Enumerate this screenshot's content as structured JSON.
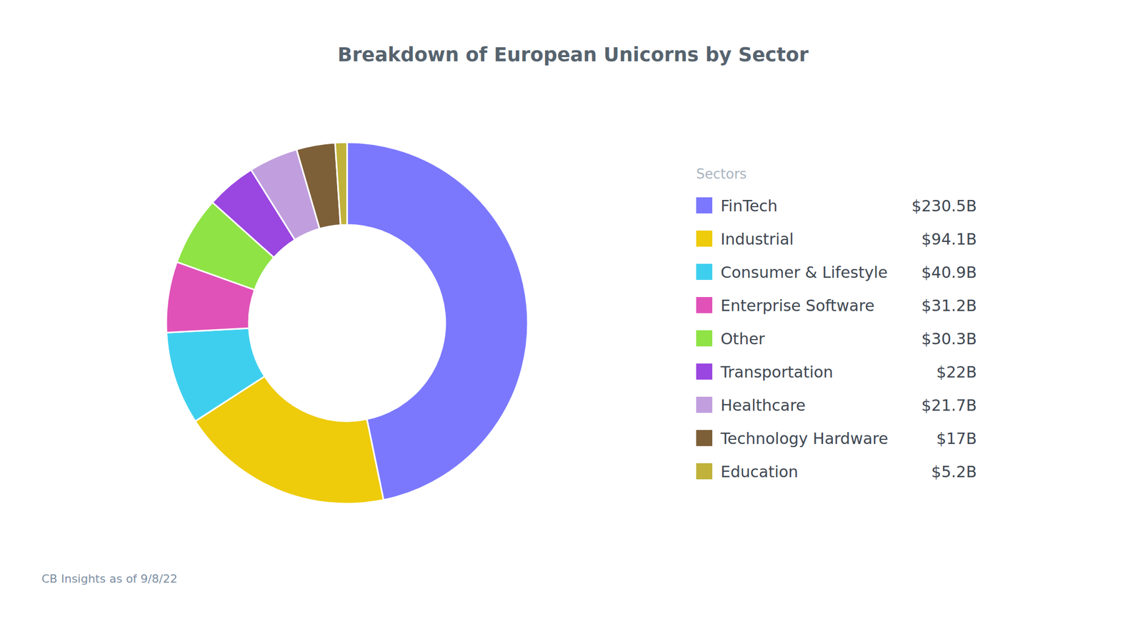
{
  "chart_data": {
    "type": "pie",
    "title": "Breakdown of European Unicorns by Sector",
    "legend_title": "Sectors",
    "source": "CB Insights as of 9/8/22",
    "categories": [
      "FinTech",
      "Industrial",
      "Consumer & Lifestyle",
      "Enterprise Software",
      "Other",
      "Transportation",
      "Healthcare",
      "Technology Hardware",
      "Education"
    ],
    "values": [
      230.5,
      94.1,
      40.9,
      31.2,
      30.3,
      22,
      21.7,
      17,
      5.2
    ],
    "value_labels": [
      "$230.5B",
      "$94.1B",
      "$40.9B",
      "$31.2B",
      "$30.3B",
      "$22B",
      "$21.7B",
      "$17B",
      "$5.2B"
    ],
    "colors": [
      "#7b78fe",
      "#eecb0b",
      "#3ecfef",
      "#e052b8",
      "#8fe345",
      "#9a46e0",
      "#c19fde",
      "#7d5f38",
      "#c0b23a"
    ],
    "legend": "right"
  }
}
